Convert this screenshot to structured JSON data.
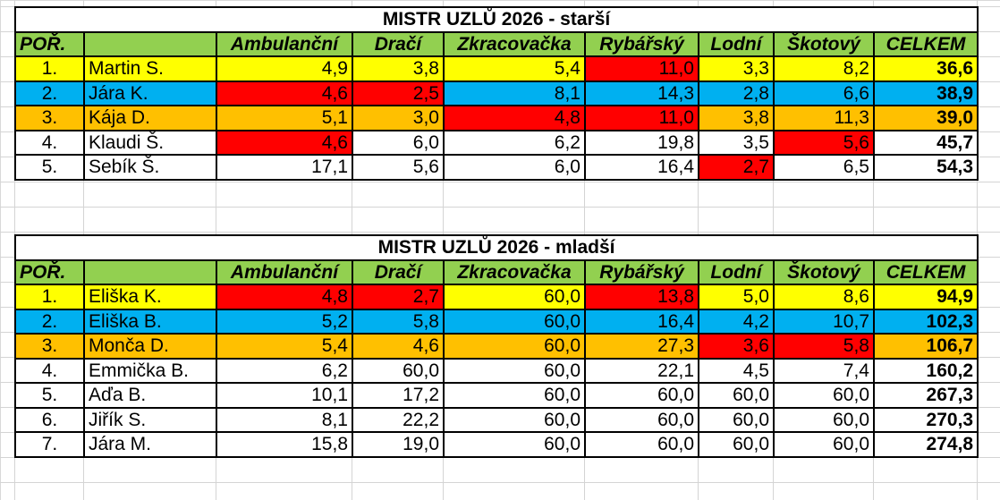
{
  "headers": [
    "POŘ.",
    "",
    "Ambulanční",
    "Dračí",
    "Zkracovačka",
    "Rybářský",
    "Lodní",
    "Škotový",
    "CELKEM"
  ],
  "colors": {
    "header_bg": "#92d050",
    "gold": "#ffff00",
    "silver": "#00b0f0",
    "bronze": "#ffc000",
    "best_time": "#ff0000"
  },
  "older": {
    "title": "MISTR UZLŮ 2026 - starší",
    "rows": [
      {
        "rank": "1.",
        "name": "Martin S.",
        "values": [
          "4,9",
          "3,8",
          "5,4",
          "11,0",
          "3,3",
          "8,2"
        ],
        "total": "36,6",
        "style": "gold",
        "highlight": [
          false,
          false,
          false,
          true,
          false,
          false
        ]
      },
      {
        "rank": "2.",
        "name": "Jára K.",
        "values": [
          "4,6",
          "2,5",
          "8,1",
          "14,3",
          "2,8",
          "6,6"
        ],
        "total": "38,9",
        "style": "silver",
        "highlight": [
          true,
          true,
          false,
          false,
          false,
          false
        ]
      },
      {
        "rank": "3.",
        "name": "Kája D.",
        "values": [
          "5,1",
          "3,0",
          "4,8",
          "11,0",
          "3,8",
          "11,3"
        ],
        "total": "39,0",
        "style": "bronze",
        "highlight": [
          false,
          false,
          true,
          true,
          false,
          false
        ]
      },
      {
        "rank": "4.",
        "name": "Klaudi Š.",
        "values": [
          "4,6",
          "6,0",
          "6,2",
          "19,8",
          "3,5",
          "5,6"
        ],
        "total": "45,7",
        "style": "plain",
        "highlight": [
          true,
          false,
          false,
          false,
          false,
          true
        ]
      },
      {
        "rank": "5.",
        "name": "Sebík Š.",
        "values": [
          "17,1",
          "5,6",
          "6,0",
          "16,4",
          "2,7",
          "6,5"
        ],
        "total": "54,3",
        "style": "plain",
        "highlight": [
          false,
          false,
          false,
          false,
          true,
          false
        ]
      }
    ]
  },
  "younger": {
    "title": "MISTR UZLŮ 2026 - mladší",
    "rows": [
      {
        "rank": "1.",
        "name": "Eliška K.",
        "values": [
          "4,8",
          "2,7",
          "60,0",
          "13,8",
          "5,0",
          "8,6"
        ],
        "total": "94,9",
        "style": "gold",
        "highlight": [
          true,
          true,
          false,
          true,
          false,
          false
        ]
      },
      {
        "rank": "2.",
        "name": "Eliška B.",
        "values": [
          "5,2",
          "5,8",
          "60,0",
          "16,4",
          "4,2",
          "10,7"
        ],
        "total": "102,3",
        "style": "silver",
        "highlight": [
          false,
          false,
          false,
          false,
          false,
          false
        ]
      },
      {
        "rank": "3.",
        "name": "Monča D.",
        "values": [
          "5,4",
          "4,6",
          "60,0",
          "27,3",
          "3,6",
          "5,8"
        ],
        "total": "106,7",
        "style": "bronze",
        "highlight": [
          false,
          false,
          false,
          false,
          true,
          true
        ]
      },
      {
        "rank": "4.",
        "name": "Emmička B.",
        "values": [
          "6,2",
          "60,0",
          "60,0",
          "22,1",
          "4,5",
          "7,4"
        ],
        "total": "160,2",
        "style": "plain",
        "highlight": [
          false,
          false,
          false,
          false,
          false,
          false
        ]
      },
      {
        "rank": "5.",
        "name": "Aďa B.",
        "values": [
          "10,1",
          "17,2",
          "60,0",
          "60,0",
          "60,0",
          "60,0"
        ],
        "total": "267,3",
        "style": "plain",
        "highlight": [
          false,
          false,
          false,
          false,
          false,
          false
        ]
      },
      {
        "rank": "6.",
        "name": "Jiřík S.",
        "values": [
          "8,1",
          "22,2",
          "60,0",
          "60,0",
          "60,0",
          "60,0"
        ],
        "total": "270,3",
        "style": "plain",
        "highlight": [
          false,
          false,
          false,
          false,
          false,
          false
        ]
      },
      {
        "rank": "7.",
        "name": "Jára M.",
        "values": [
          "15,8",
          "19,0",
          "60,0",
          "60,0",
          "60,0",
          "60,0"
        ],
        "total": "274,8",
        "style": "plain",
        "highlight": [
          false,
          false,
          false,
          false,
          false,
          false
        ]
      }
    ]
  }
}
